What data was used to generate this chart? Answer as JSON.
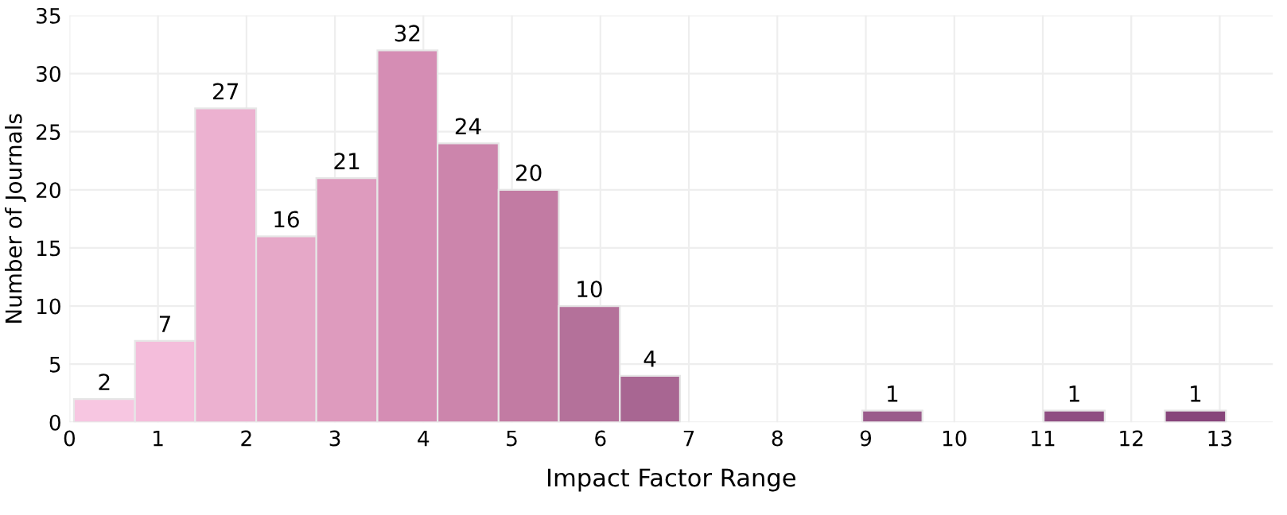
{
  "chart_data": {
    "type": "histogram",
    "xlabel": "Impact Factor Range",
    "ylabel": "Number of Journals",
    "bins": [
      0.05,
      0.74,
      1.42,
      2.11,
      2.79,
      3.48,
      4.16,
      4.85,
      5.53,
      6.22,
      6.9,
      8.96,
      9.64,
      11.01,
      11.7,
      12.38,
      13.07
    ],
    "values": [
      2,
      7,
      27,
      16,
      21,
      32,
      24,
      20,
      10,
      4,
      null,
      1,
      null,
      1,
      null,
      1
    ],
    "value_labels": [
      "2",
      "7",
      "27",
      "16",
      "21",
      "32",
      "24",
      "20",
      "10",
      "4",
      null,
      "1",
      null,
      "1",
      null,
      "1"
    ],
    "colors": [
      "#f7c6e1",
      "#f4bddb",
      "#ecb1d0",
      "#e6a8c8",
      "#de9bbe",
      "#d58db4",
      "#cc85ac",
      "#c27ba3",
      "#b4719a",
      "#a86692",
      null,
      "#9a5b8b",
      null,
      "#8f4e82",
      null,
      "#87457b"
    ],
    "xlim": [
      0,
      13.6
    ],
    "ylim": [
      0,
      35
    ],
    "xticks": [
      0,
      1,
      2,
      3,
      4,
      5,
      6,
      7,
      8,
      9,
      10,
      11,
      12,
      13
    ],
    "yticks": [
      0,
      5,
      10,
      15,
      20,
      25,
      30,
      35
    ],
    "grid": true
  }
}
